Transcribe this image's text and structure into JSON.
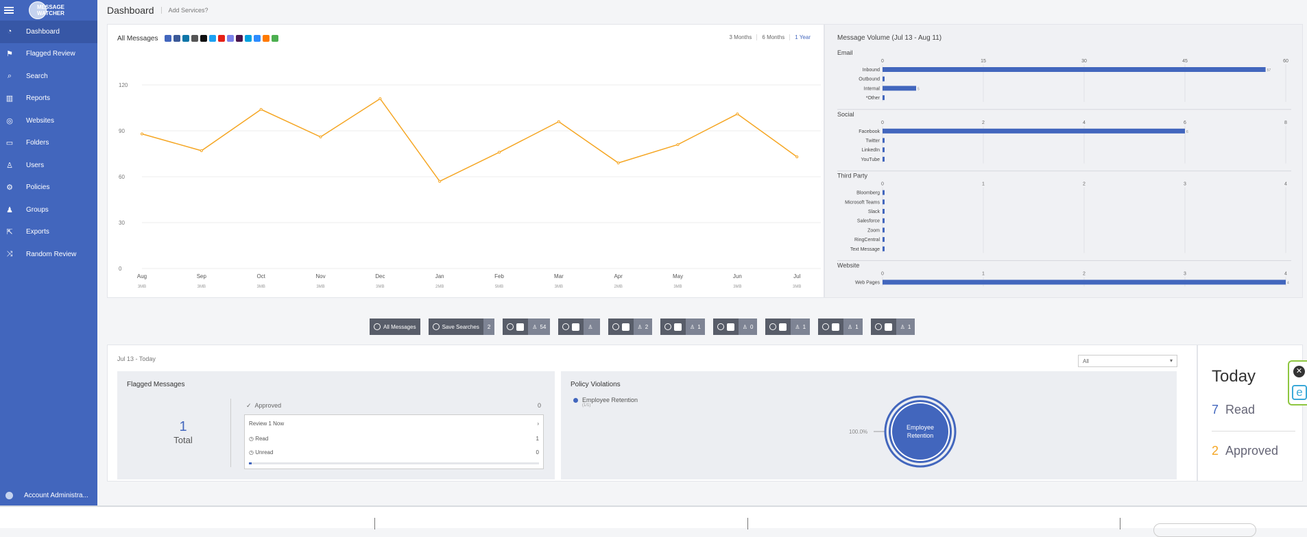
{
  "app": {
    "logo_text_1": "MESSAGE",
    "logo_text_2": "WATCHER"
  },
  "header": {
    "title": "Dashboard",
    "add_services": "Add Services?"
  },
  "sidebar": {
    "items": [
      {
        "label": "Dashboard",
        "icon": "dashboard-icon"
      },
      {
        "label": "Flagged Review",
        "icon": "flag-icon"
      },
      {
        "label": "Search",
        "icon": "search-icon"
      },
      {
        "label": "Reports",
        "icon": "reports-icon"
      },
      {
        "label": "Websites",
        "icon": "globe-icon"
      },
      {
        "label": "Folders",
        "icon": "folder-icon"
      },
      {
        "label": "Users",
        "icon": "user-icon"
      },
      {
        "label": "Policies",
        "icon": "policy-icon"
      },
      {
        "label": "Groups",
        "icon": "group-icon"
      },
      {
        "label": "Exports",
        "icon": "export-icon"
      },
      {
        "label": "Random Review",
        "icon": "shuffle-icon"
      }
    ],
    "account": "Account Administra..."
  },
  "main_panel": {
    "title": "All Messages",
    "services": [
      "#4266bd",
      "#3b5998",
      "#0e76a8",
      "#555555",
      "#111111",
      "#1da1f2",
      "#e62117",
      "#7b83eb",
      "#4a154b",
      "#00a1e0",
      "#2d8cff",
      "#ff7a00",
      "#4caf50"
    ],
    "ranges": [
      "3 Months",
      "6 Months",
      "1 Year"
    ],
    "selected_range": "1 Year"
  },
  "chart_data": [
    {
      "type": "line",
      "title": "All Messages",
      "categories": [
        "Aug",
        "Sep",
        "Oct",
        "Nov",
        "Dec",
        "Jan",
        "Feb",
        "Mar",
        "Apr",
        "May",
        "Jun",
        "Jul"
      ],
      "sizes": [
        "3MB",
        "3MB",
        "3MB",
        "3MB",
        "3MB",
        "2MB",
        "5MB",
        "3MB",
        "2MB",
        "3MB",
        "3MB",
        "3MB"
      ],
      "values": [
        88,
        77,
        104,
        86,
        111,
        57,
        76,
        96,
        69,
        81,
        101,
        73
      ],
      "ylim": [
        0,
        120
      ],
      "yticks": [
        0,
        30,
        60,
        90,
        120
      ],
      "color": "#f5a623"
    },
    {
      "type": "bar",
      "title": "Message Volume (Jul 13 - Aug 11)",
      "groups": [
        {
          "name": "Email",
          "ticks": [
            0,
            15,
            30,
            45,
            60
          ],
          "max": 60,
          "categories": [
            "Inbound",
            "Outbound",
            "Internal",
            "*Other"
          ],
          "values": [
            57,
            0,
            5,
            0
          ]
        },
        {
          "name": "Social",
          "ticks": [
            0,
            2,
            4,
            6,
            8
          ],
          "max": 8,
          "categories": [
            "Facebook",
            "Twitter",
            "LinkedIn",
            "YouTube"
          ],
          "values": [
            6,
            0,
            0,
            0
          ]
        },
        {
          "name": "Third Party",
          "ticks": [
            0,
            1,
            2,
            3,
            4
          ],
          "max": 4,
          "categories": [
            "Bloomberg",
            "Microsoft Teams",
            "Slack",
            "Salesforce",
            "Zoom",
            "RingCentral",
            "Text Message"
          ],
          "values": [
            0,
            0,
            0,
            0,
            0,
            0,
            0
          ]
        },
        {
          "name": "Website",
          "ticks": [
            0,
            1,
            2,
            3,
            4
          ],
          "max": 4,
          "categories": [
            "Web Pages"
          ],
          "values": [
            4
          ]
        }
      ],
      "color": "#4266bd"
    }
  ],
  "filters": {
    "all_messages": "All Messages",
    "save_searches": "Save Searches",
    "save_searches_count": "2",
    "chips": [
      {
        "icon": "email-icon",
        "count": "54"
      },
      {
        "icon": "web-icon",
        "count": ""
      },
      {
        "icon": "facebook-icon",
        "count": "2"
      },
      {
        "icon": "twitter-icon",
        "count": "1"
      },
      {
        "icon": "linkedin-icon",
        "count": "0"
      },
      {
        "icon": "youtube-icon",
        "count": "1"
      },
      {
        "icon": "bloomberg-icon",
        "count": "1"
      },
      {
        "icon": "zoom-icon",
        "count": "1"
      }
    ]
  },
  "summary": {
    "range": "Jul 13 - Today",
    "select": "All",
    "flagged": {
      "title": "Flagged Messages",
      "total_num": "1",
      "total_label": "Total",
      "approved_label": "Approved",
      "approved_count": "0",
      "review_label": "Review 1 Now",
      "read_label": "Read",
      "read_count": "1",
      "unread_label": "Unread",
      "unread_count": "0",
      "progress": 0.01
    },
    "policy": {
      "title": "Policy Violations",
      "legend_name": "Employee Retention",
      "legend_sub": "(1/1)",
      "percent_label": "100.0%",
      "donut_text_1": "Employee",
      "donut_text_2": "Retention"
    },
    "today": {
      "title": "Today",
      "read_num": "7",
      "read_label": "Read",
      "approved_num": "2",
      "approved_label": "Approved"
    }
  }
}
